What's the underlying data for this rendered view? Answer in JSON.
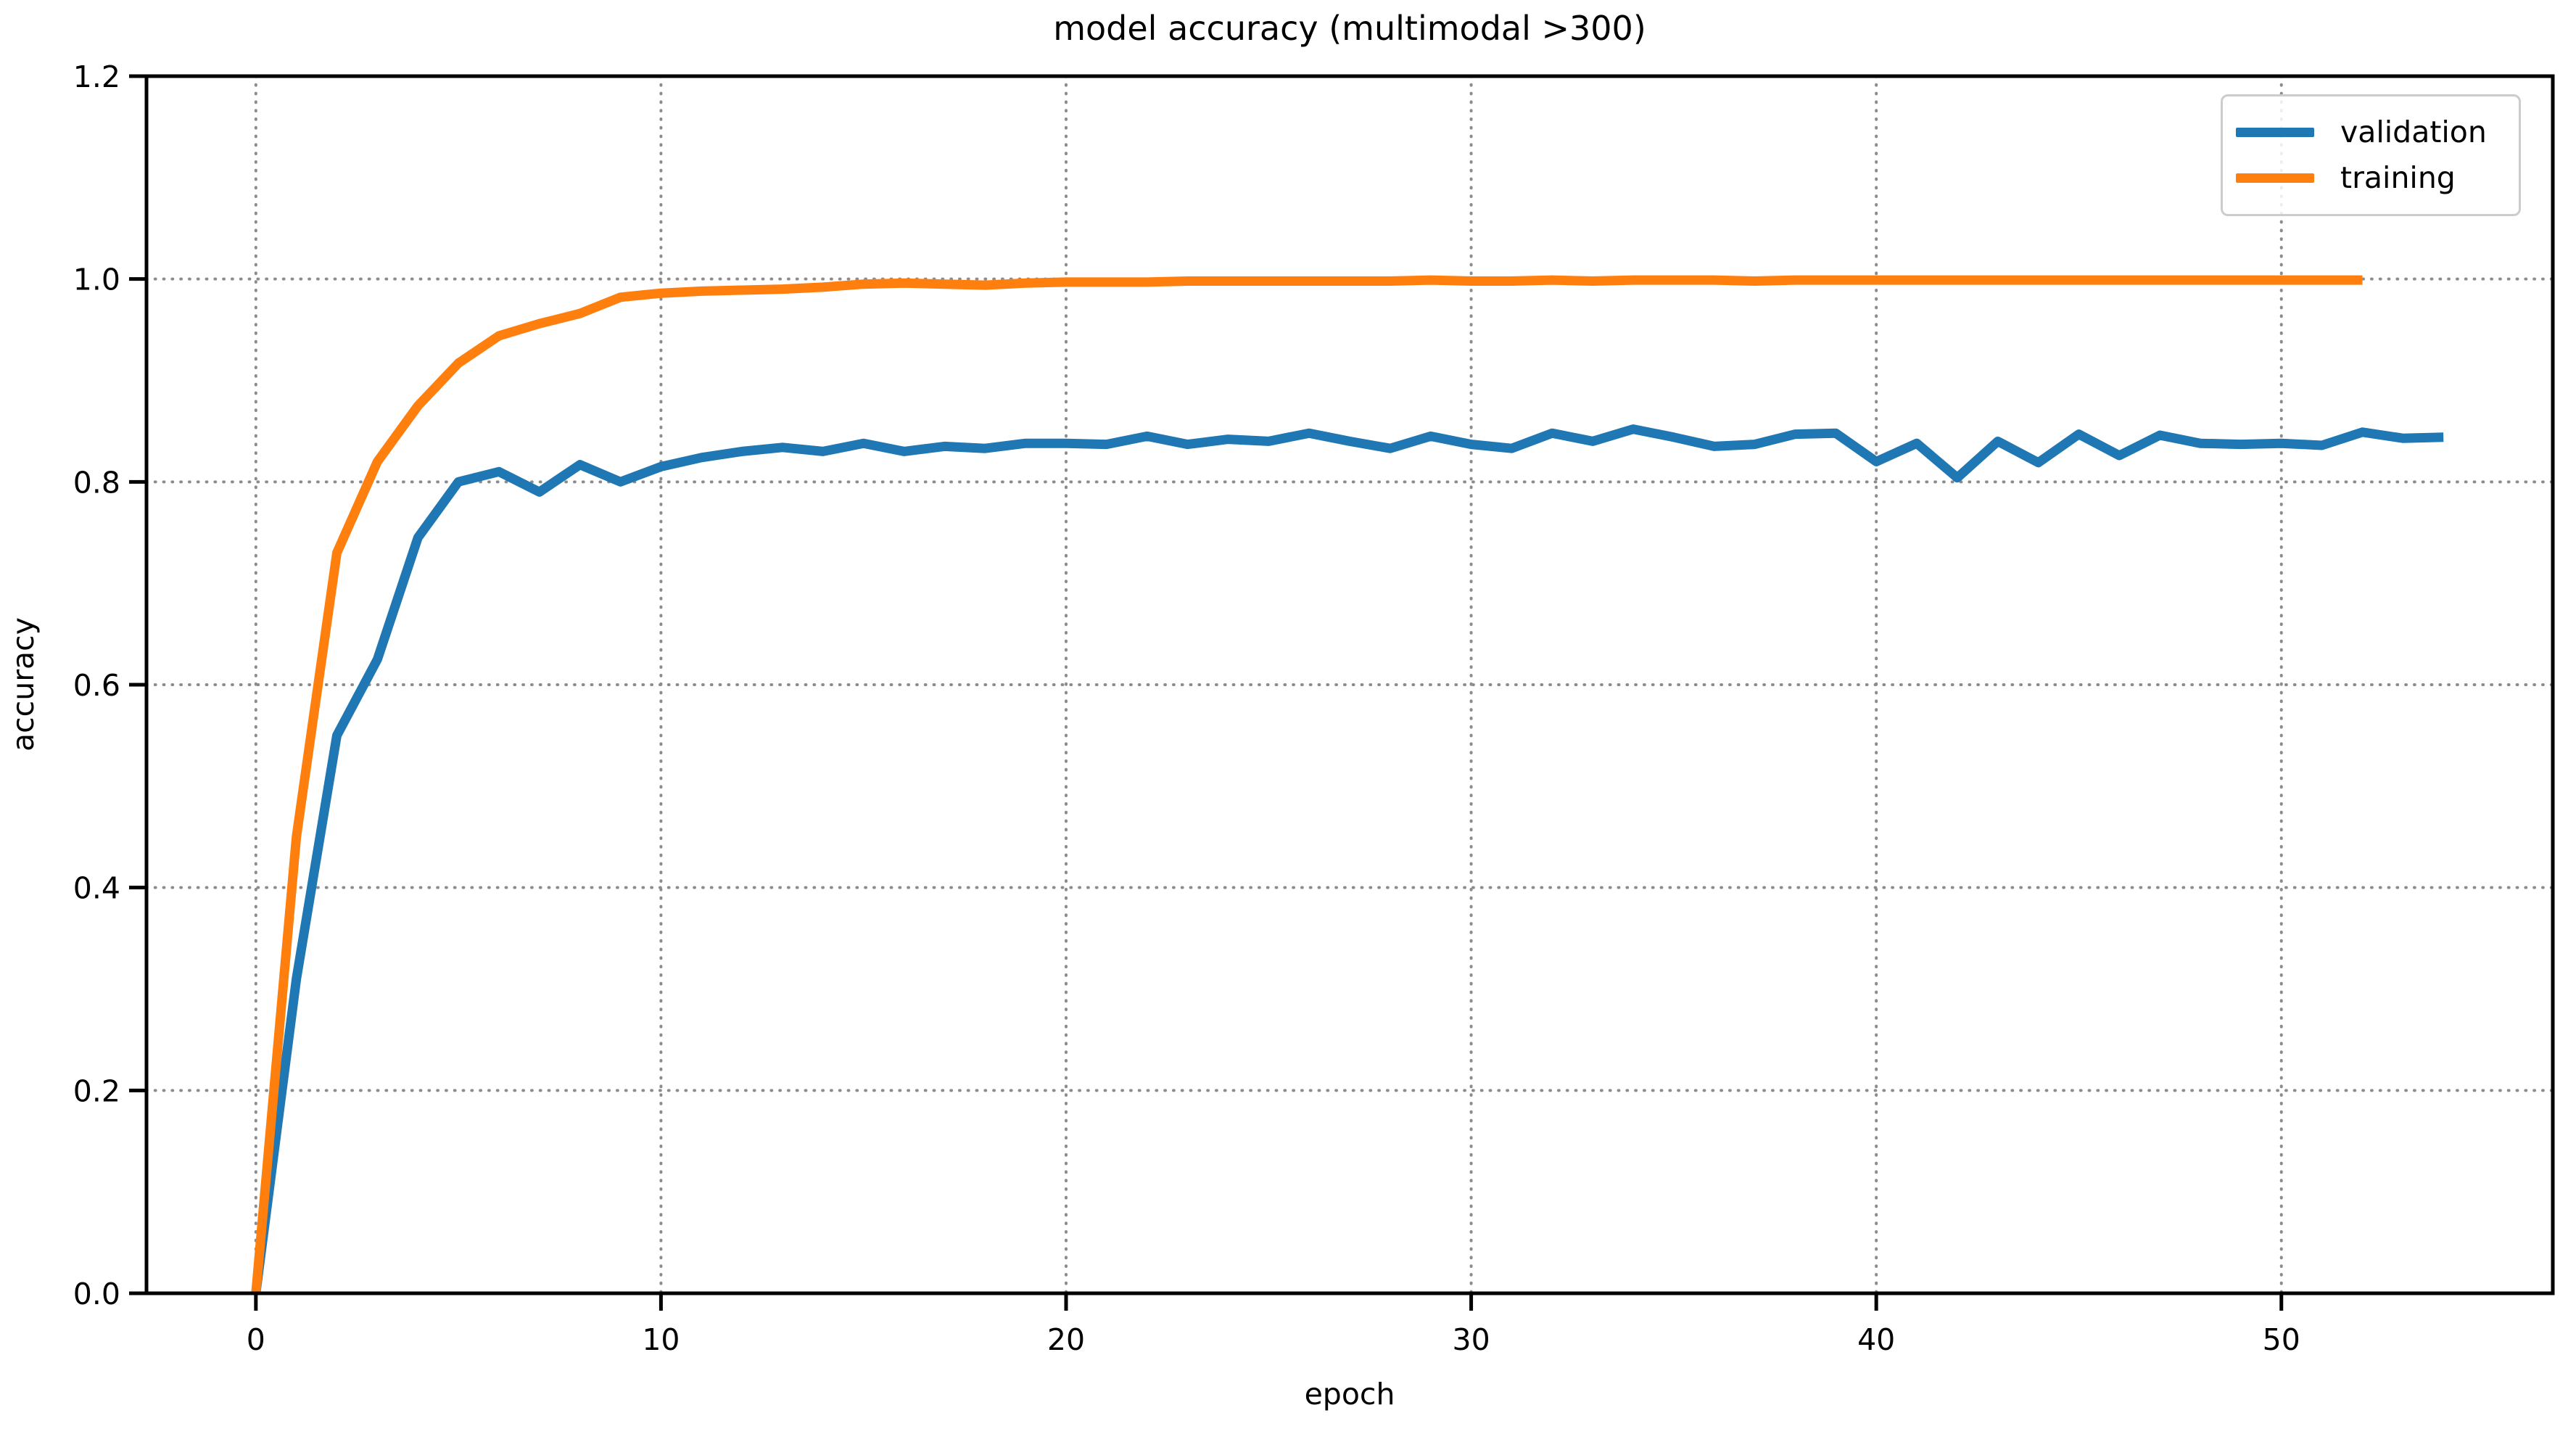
{
  "figure": {
    "title": "model accuracy (multimodal >300)"
  },
  "chart_data": {
    "type": "line",
    "title": "model accuracy (multimodal >300)",
    "xlabel": "epoch",
    "ylabel": "accuracy",
    "xlim": [
      -2.7,
      56.7
    ],
    "ylim": [
      0,
      1.2
    ],
    "xticks": [
      0,
      10,
      20,
      30,
      40,
      50
    ],
    "ytick_values": [
      0.0,
      0.2,
      0.4,
      0.6,
      0.8,
      1.0,
      1.2
    ],
    "ytick_labels": [
      "0.0",
      "0.2",
      "0.4",
      "0.6",
      "0.8",
      "1.0",
      "1.2"
    ],
    "grid": {
      "visible": true,
      "style": "dotted",
      "color": "#8c8c8c"
    },
    "legend": {
      "position": "upper right",
      "items": [
        {
          "label": "validation",
          "color": "#1f77b4"
        },
        {
          "label": "training",
          "color": "#ff7f0e"
        }
      ]
    },
    "series": [
      {
        "name": "validation",
        "color": "#1f77b4",
        "x": [
          0,
          1,
          2,
          3,
          4,
          5,
          6,
          7,
          8,
          9,
          10,
          11,
          12,
          13,
          14,
          15,
          16,
          17,
          18,
          19,
          20,
          21,
          22,
          23,
          24,
          25,
          26,
          27,
          28,
          29,
          30,
          31,
          32,
          33,
          34,
          35,
          36,
          37,
          38,
          39,
          40,
          41,
          42,
          43,
          44,
          45,
          46,
          47,
          48,
          49,
          50,
          51,
          52,
          53,
          54
        ],
        "y": [
          0.0,
          0.31,
          0.55,
          0.625,
          0.745,
          0.8,
          0.81,
          0.79,
          0.817,
          0.8,
          0.815,
          0.824,
          0.83,
          0.834,
          0.83,
          0.838,
          0.83,
          0.835,
          0.833,
          0.838,
          0.838,
          0.837,
          0.845,
          0.837,
          0.842,
          0.84,
          0.848,
          0.84,
          0.833,
          0.845,
          0.837,
          0.833,
          0.848,
          0.84,
          0.852,
          0.844,
          0.835,
          0.837,
          0.847,
          0.848,
          0.82,
          0.838,
          0.804,
          0.84,
          0.819,
          0.847,
          0.826,
          0.846,
          0.838,
          0.837,
          0.838,
          0.836,
          0.849,
          0.843,
          0.844
        ]
      },
      {
        "name": "training",
        "color": "#ff7f0e",
        "x": [
          0,
          1,
          2,
          3,
          4,
          5,
          6,
          7,
          8,
          9,
          10,
          11,
          12,
          13,
          14,
          15,
          16,
          17,
          18,
          19,
          20,
          21,
          22,
          23,
          24,
          25,
          26,
          27,
          28,
          29,
          30,
          31,
          32,
          33,
          34,
          35,
          36,
          37,
          38,
          39,
          40,
          41,
          42,
          43,
          44,
          45,
          46,
          47,
          48,
          49,
          50,
          51,
          52
        ],
        "y": [
          0.0,
          0.45,
          0.73,
          0.82,
          0.875,
          0.917,
          0.944,
          0.956,
          0.966,
          0.982,
          0.986,
          0.988,
          0.989,
          0.99,
          0.992,
          0.995,
          0.996,
          0.995,
          0.994,
          0.996,
          0.997,
          0.997,
          0.997,
          0.998,
          0.998,
          0.998,
          0.998,
          0.998,
          0.998,
          0.999,
          0.998,
          0.998,
          0.999,
          0.998,
          0.999,
          0.999,
          0.999,
          0.998,
          0.999,
          0.999,
          0.999,
          0.999,
          0.999,
          0.999,
          0.999,
          0.999,
          0.999,
          0.999,
          0.999,
          0.999,
          0.999,
          0.999,
          0.999
        ]
      }
    ]
  }
}
